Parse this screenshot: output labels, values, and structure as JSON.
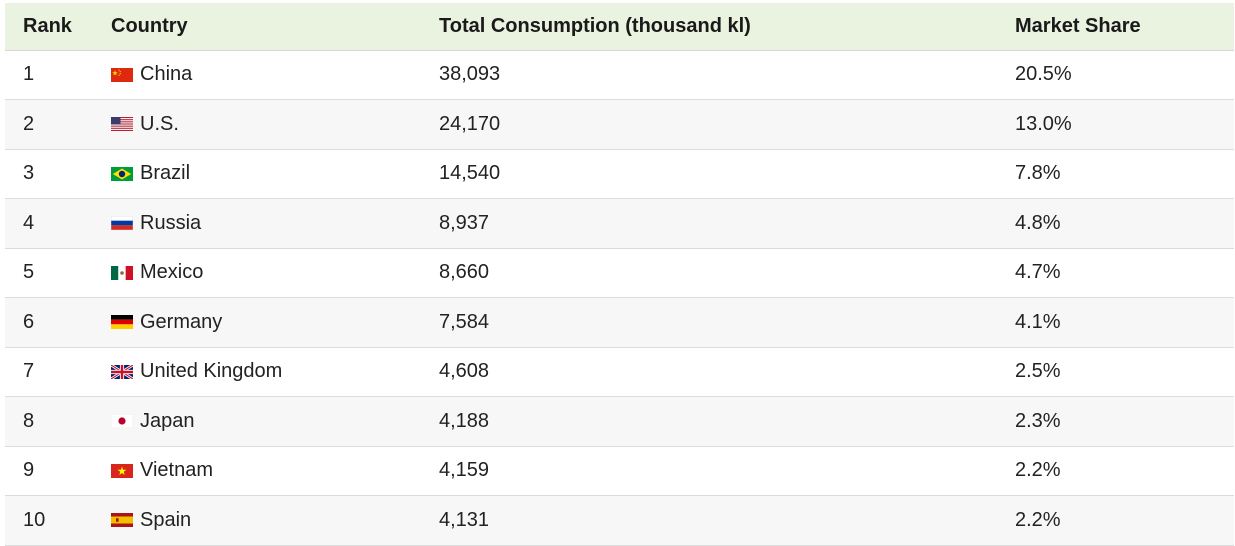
{
  "table": {
    "headers": {
      "rank": "Rank",
      "country": "Country",
      "total": "Total Consumption (thousand kl)",
      "share": "Market Share"
    },
    "rows": [
      {
        "rank": "1",
        "country": "China",
        "flag": "china-flag-icon",
        "total": "38,093",
        "share": "20.5%"
      },
      {
        "rank": "2",
        "country": "U.S.",
        "flag": "us-flag-icon",
        "total": "24,170",
        "share": "13.0%"
      },
      {
        "rank": "3",
        "country": "Brazil",
        "flag": "brazil-flag-icon",
        "total": "14,540",
        "share": "7.8%"
      },
      {
        "rank": "4",
        "country": "Russia",
        "flag": "russia-flag-icon",
        "total": "8,937",
        "share": "4.8%"
      },
      {
        "rank": "5",
        "country": "Mexico",
        "flag": "mexico-flag-icon",
        "total": "8,660",
        "share": "4.7%"
      },
      {
        "rank": "6",
        "country": "Germany",
        "flag": "germany-flag-icon",
        "total": "7,584",
        "share": "4.1%"
      },
      {
        "rank": "7",
        "country": "United Kingdom",
        "flag": "uk-flag-icon",
        "total": "4,608",
        "share": "2.5%"
      },
      {
        "rank": "8",
        "country": "Japan",
        "flag": "japan-flag-icon",
        "total": "4,188",
        "share": "2.3%"
      },
      {
        "rank": "9",
        "country": "Vietnam",
        "flag": "vietnam-flag-icon",
        "total": "4,159",
        "share": "2.2%"
      },
      {
        "rank": "10",
        "country": "Spain",
        "flag": "spain-flag-icon",
        "total": "4,131",
        "share": "2.2%"
      }
    ]
  },
  "colors": {
    "header_background": "#e9f3df",
    "stripe_background": "#f7f7f7"
  }
}
